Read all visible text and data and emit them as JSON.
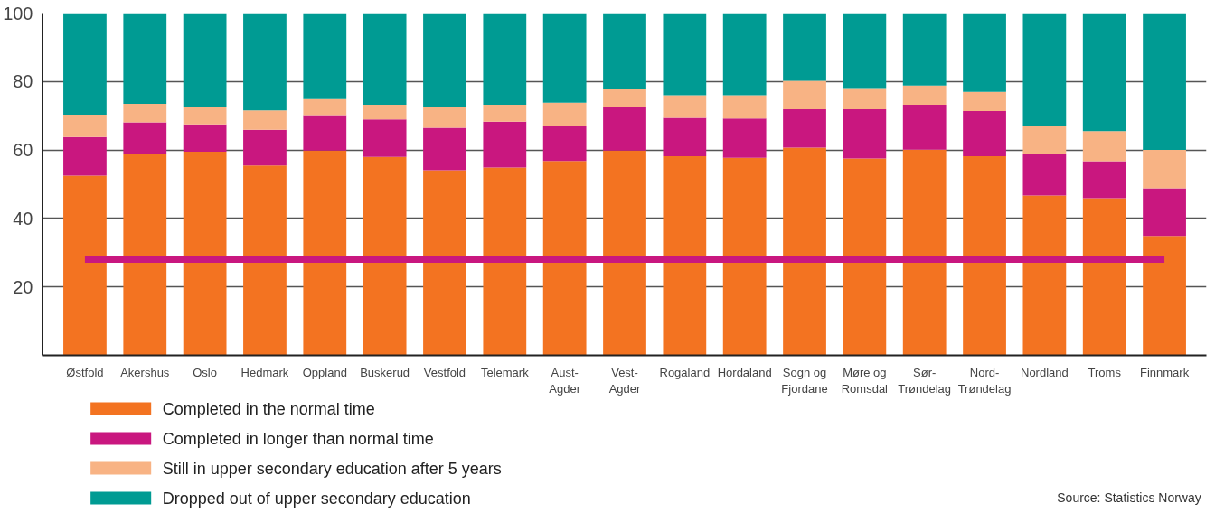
{
  "chart_data": {
    "type": "bar",
    "stacked": true,
    "categories": [
      "Østfold",
      "Akershus",
      "Oslo",
      "Hedmark",
      "Oppland",
      "Buskerud",
      "Vestfold",
      "Telemark",
      "Aust-\nAgder",
      "Vest-\nAgder",
      "Rogaland",
      "Hordaland",
      "Sogn og\nFjordane",
      "Møre og\nRomsdal",
      "Sør-\nTrøndelag",
      "Nord-\nTrøndelag",
      "Nordland",
      "Troms",
      "Finnmark"
    ],
    "series": [
      {
        "name": "Completed in the normal time",
        "color": "#f37321",
        "values": [
          52.5,
          58.9,
          59.5,
          55.5,
          59.8,
          58.0,
          54.1,
          54.9,
          56.8,
          59.8,
          58.2,
          57.7,
          60.7,
          57.5,
          60.1,
          58.2,
          46.7,
          45.9,
          34.9
        ]
      },
      {
        "name": "Completed in longer than normal time",
        "color": "#c9177f",
        "values": [
          11.3,
          9.2,
          8.0,
          10.4,
          10.4,
          10.9,
          12.4,
          13.4,
          10.3,
          12.9,
          11.2,
          11.5,
          11.2,
          14.4,
          13.1,
          13.2,
          12.1,
          10.8,
          13.9
        ]
      },
      {
        "name": "Still in upper secondary education after 5 years",
        "color": "#f8b384",
        "values": [
          6.5,
          5.4,
          5.1,
          5.7,
          4.7,
          4.3,
          6.1,
          4.9,
          6.7,
          5.1,
          6.6,
          6.8,
          8.3,
          6.2,
          5.6,
          5.6,
          8.3,
          8.8,
          11.2
        ]
      },
      {
        "name": "Dropped out of upper secondary education",
        "color": "#009b93",
        "values": [
          29.7,
          26.5,
          27.4,
          28.4,
          25.1,
          26.8,
          27.4,
          26.8,
          26.2,
          22.2,
          24.0,
          24.0,
          19.8,
          21.9,
          21.2,
          23.0,
          32.9,
          34.5,
          40.0
        ]
      }
    ],
    "ylim": [
      0,
      100
    ],
    "yticks": [
      20,
      40,
      60,
      80,
      100
    ],
    "grid": "y",
    "legend": "bottom",
    "ref_lines": [
      {
        "axis": "y",
        "value": 28,
        "color": "#c9177f"
      }
    ],
    "annotations": [
      "Source: Statistics Norway"
    ]
  }
}
